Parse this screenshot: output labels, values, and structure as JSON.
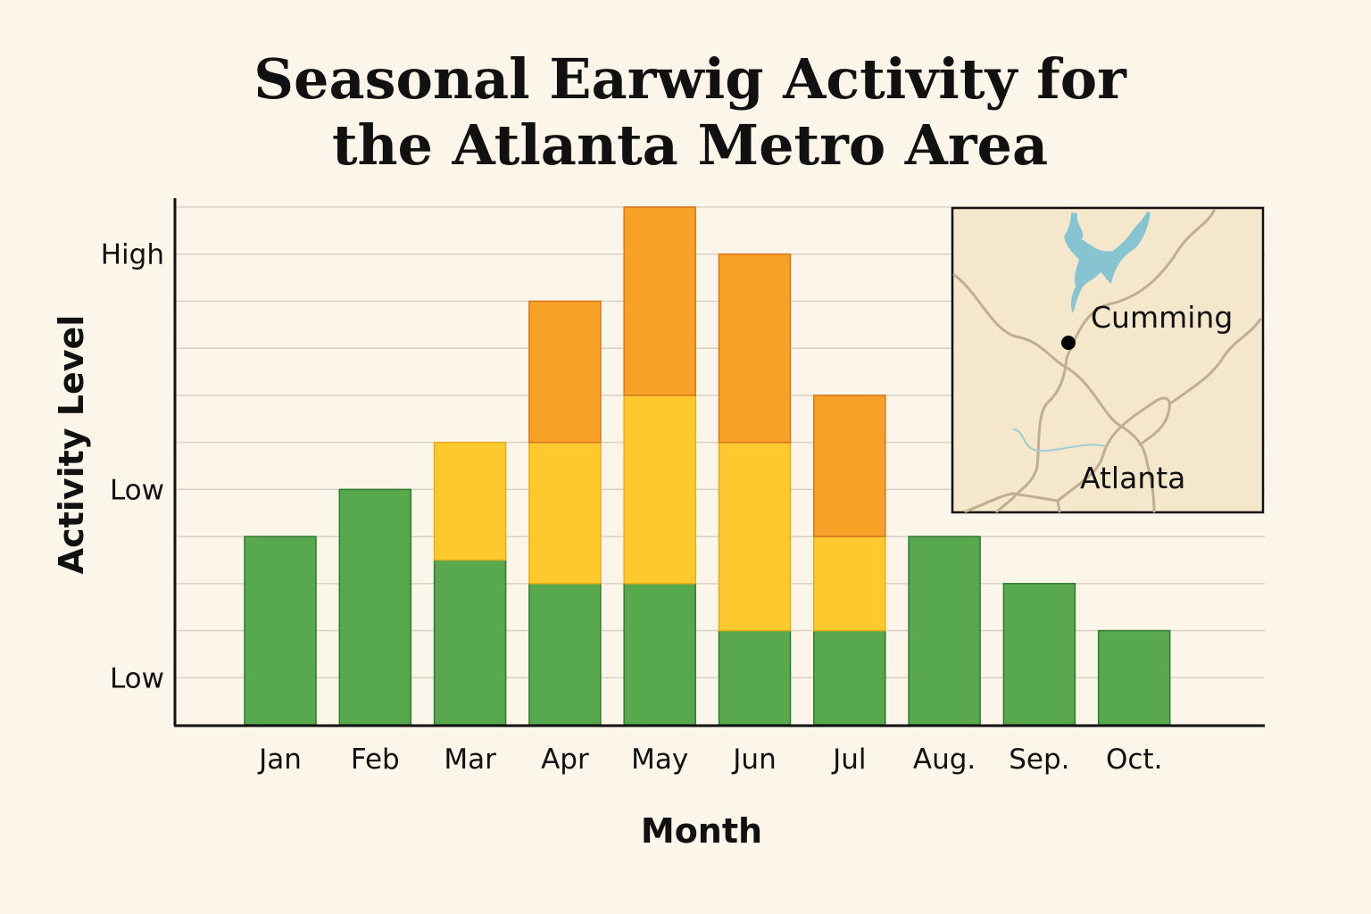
{
  "chart_data": {
    "type": "bar",
    "stacked": true,
    "title_lines": [
      "Seasonal Earwig Activity for",
      "the Atlanta Metro Area"
    ],
    "xlabel": "Month",
    "ylabel": "Activity Level",
    "categories": [
      "Jan",
      "Feb",
      "Mar",
      "Apr",
      "May",
      "Jun",
      "Jul",
      "Aug.",
      "Sep.",
      "Oct."
    ],
    "series": [
      {
        "color": "#58a84e",
        "values": [
          4,
          5,
          3.5,
          3,
          3,
          2,
          2,
          4,
          3,
          2
        ]
      },
      {
        "color": "#fdc92e",
        "values": [
          0,
          0,
          2.5,
          3,
          4,
          4,
          2,
          0,
          0,
          0
        ]
      },
      {
        "color": "#f7a127",
        "values": [
          0,
          0,
          0,
          3,
          4,
          4,
          3,
          0,
          0,
          0
        ]
      }
    ],
    "ylim": [
      0,
      11
    ],
    "y_ticks": [
      {
        "value": 10,
        "label": "High"
      },
      {
        "value": 5,
        "label": "Low"
      },
      {
        "value": 1,
        "label": "Low"
      }
    ],
    "grid": true,
    "inset_map": {
      "labels": [
        "Cumming",
        "Atlanta"
      ],
      "placement": "top-right"
    }
  }
}
